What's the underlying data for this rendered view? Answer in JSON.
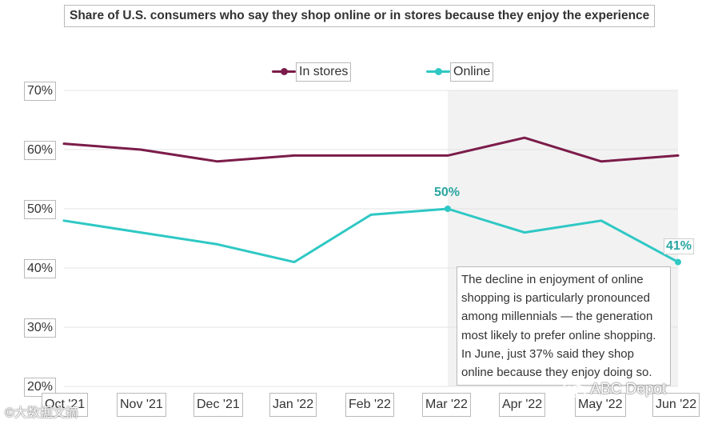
{
  "chart_data": {
    "type": "line",
    "title": "Share of U.S. consumers who say they shop online or in stores because they enjoy the experience",
    "xlabel": "",
    "ylabel": "",
    "categories": [
      "Oct '21",
      "Nov '21",
      "Dec '21",
      "Jan '22",
      "Feb '22",
      "Mar '22",
      "Apr '22",
      "May '22",
      "Jun '22"
    ],
    "ylim": [
      20,
      70
    ],
    "yticks": [
      "70%",
      "60%",
      "50%",
      "40%",
      "30%",
      "20%"
    ],
    "grid": true,
    "legend_position": "top",
    "shaded_from_category": "Mar '22",
    "series": [
      {
        "name": "In stores",
        "color": "#7b1c4a",
        "values": [
          61,
          60,
          58,
          59,
          59,
          59,
          62,
          58,
          59
        ]
      },
      {
        "name": "Online",
        "color": "#2ec8c4",
        "values": [
          48,
          46,
          44,
          41,
          49,
          50,
          46,
          48,
          41
        ]
      }
    ],
    "data_labels": [
      {
        "series": "Online",
        "category": "Mar '22",
        "text": "50%"
      },
      {
        "series": "Online",
        "category": "Jun '22",
        "text": "41%"
      }
    ],
    "annotation": "The decline in enjoyment of online shopping is particularly pronounced among millennials — the generation most likely to prefer online shopping. In June, just 37% said they shop online because they enjoy doing so."
  },
  "watermarks": {
    "left": "©大数据文摘",
    "right": "ABC Depot"
  },
  "colors": {
    "shade": "#f2f2f2",
    "grid": "#e3e3e3",
    "label_teal": "#2aa6a1"
  }
}
